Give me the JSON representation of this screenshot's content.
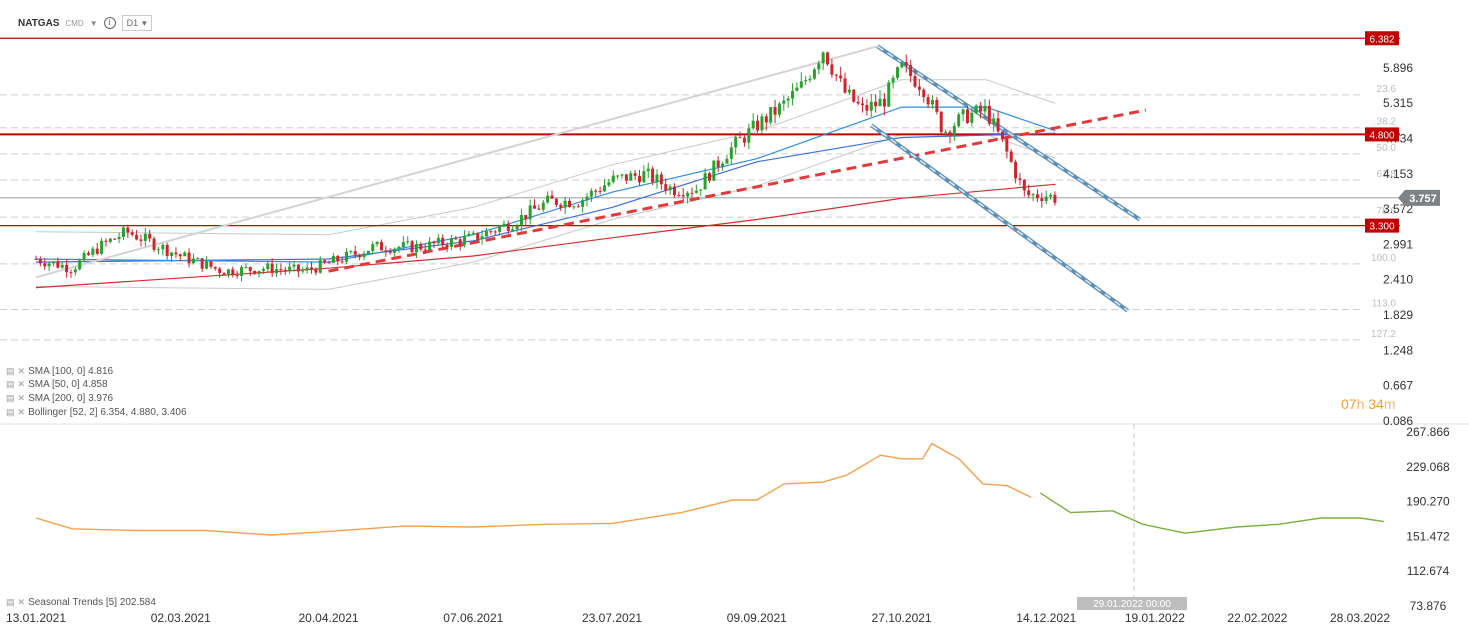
{
  "header": {
    "symbol": "NATGAS",
    "market": "CMD",
    "timeframe": "D1"
  },
  "indicators": [
    {
      "label": "SMA [100,  0] 4.816"
    },
    {
      "label": "SMA [50,  0] 4.858"
    },
    {
      "label": "SMA [200,  0] 3.976"
    },
    {
      "label": "Bollinger  [52, 2] 6.354,  4.880,  3.406"
    }
  ],
  "lower_legend": "Seasonal  Trends [5] 202.584",
  "timer": {
    "hours": "07",
    "h": "h",
    "minutes": "34",
    "m": "m"
  },
  "crosshair_label": "29.01.2022 00:00",
  "colors": {
    "up": "#27a22d",
    "down": "#d0242b",
    "level": "#c00000",
    "sma100": "#3a6fd8",
    "sma50": "#2f8fe0",
    "sma200": "#d12f2f",
    "bollinger": "#c9c9c9",
    "trend": "#e03a3a",
    "channel": "#5c8fb6",
    "seasonal_past": "#f2a14a",
    "seasonal_future": "#7ab03c"
  },
  "chart_data": [
    {
      "type": "candlestick",
      "symbol": "NATGAS",
      "ylim": [
        0.086,
        6.6
      ],
      "y_ticks": [
        "5.896",
        "5.315",
        "4.734",
        "4.153",
        "3.572",
        "2.991",
        "2.410",
        "1.829",
        "1.248",
        "0.667",
        "0.086"
      ],
      "x_ticks": [
        "13.01.2021",
        "02.03.2021",
        "20.04.2021",
        "07.06.2021",
        "23.07.2021",
        "09.09.2021",
        "27.10.2021",
        "14.12.2021",
        "19.01.2022",
        "22.02.2022",
        "28.03.2022"
      ],
      "price_levels": [
        {
          "label": "6.382",
          "value": 6.382
        },
        {
          "label": "4.800",
          "value": 4.8
        },
        {
          "label": "3.300",
          "value": 3.3
        }
      ],
      "last_price": {
        "label": "3.757",
        "value": 3.757
      },
      "fibonacci": [
        {
          "label": "23.6",
          "value": 5.45
        },
        {
          "label": "38.2",
          "value": 4.91
        },
        {
          "label": "50.0",
          "value": 4.48
        },
        {
          "label": "61.8",
          "value": 4.05
        },
        {
          "label": "78.6",
          "value": 3.44
        },
        {
          "label": "100.0",
          "value": 2.67
        },
        {
          "label": "113.0",
          "value": 1.92
        },
        {
          "label": "127.2",
          "value": 1.42
        }
      ],
      "close_path": [
        [
          "13.01.2021",
          2.75
        ],
        [
          "25.01.2021",
          2.6
        ],
        [
          "03.02.2021",
          2.95
        ],
        [
          "12.02.2021",
          3.2
        ],
        [
          "19.02.2021",
          3.05
        ],
        [
          "02.03.2021",
          2.8
        ],
        [
          "16.03.2021",
          2.55
        ],
        [
          "30.03.2021",
          2.6
        ],
        [
          "12.04.2021",
          2.55
        ],
        [
          "20.04.2021",
          2.68
        ],
        [
          "05.05.2021",
          2.95
        ],
        [
          "20.05.2021",
          2.95
        ],
        [
          "07.06.2021",
          3.1
        ],
        [
          "20.06.2021",
          3.35
        ],
        [
          "02.07.2021",
          3.7
        ],
        [
          "12.07.2021",
          3.7
        ],
        [
          "23.07.2021",
          4.05
        ],
        [
          "03.08.2021",
          4.15
        ],
        [
          "12.08.2021",
          3.9
        ],
        [
          "20.08.2021",
          3.9
        ],
        [
          "30.08.2021",
          4.5
        ],
        [
          "09.09.2021",
          4.95
        ],
        [
          "17.09.2021",
          5.25
        ],
        [
          "24.09.2021",
          5.6
        ],
        [
          "01.10.2021",
          6.2
        ],
        [
          "08.10.2021",
          5.5
        ],
        [
          "14.10.2021",
          5.2
        ],
        [
          "21.10.2021",
          5.35
        ],
        [
          "27.10.2021",
          5.9
        ],
        [
          "03.11.2021",
          5.6
        ],
        [
          "10.11.2021",
          4.85
        ],
        [
          "17.11.2021",
          5.1
        ],
        [
          "24.11.2021",
          5.2
        ],
        [
          "30.11.2021",
          4.6
        ],
        [
          "07.12.2021",
          3.8
        ],
        [
          "14.12.2021",
          3.8
        ],
        [
          "17.12.2021",
          3.75
        ]
      ],
      "sma100_path": [
        [
          "13.01.2021",
          2.7
        ],
        [
          "20.04.2021",
          2.75
        ],
        [
          "07.06.2021",
          3.05
        ],
        [
          "23.07.2021",
          3.6
        ],
        [
          "09.09.2021",
          4.35
        ],
        [
          "27.10.2021",
          4.75
        ],
        [
          "17.12.2021",
          4.82
        ]
      ],
      "sma50_path": [
        [
          "13.01.2021",
          2.75
        ],
        [
          "20.04.2021",
          2.7
        ],
        [
          "07.06.2021",
          3.15
        ],
        [
          "23.07.2021",
          3.85
        ],
        [
          "09.09.2021",
          4.4
        ],
        [
          "27.10.2021",
          5.25
        ],
        [
          "24.11.2021",
          5.25
        ],
        [
          "17.12.2021",
          4.86
        ]
      ],
      "sma200_path": [
        [
          "13.01.2021",
          2.28
        ],
        [
          "20.04.2021",
          2.6
        ],
        [
          "07.06.2021",
          2.8
        ],
        [
          "23.07.2021",
          3.1
        ],
        [
          "09.09.2021",
          3.4
        ],
        [
          "27.10.2021",
          3.75
        ],
        [
          "17.12.2021",
          3.98
        ]
      ]
    },
    {
      "type": "line",
      "name": "Seasonal  Trends [5]",
      "ylim": [
        73.876,
        267.866
      ],
      "y_ticks": [
        "267.866",
        "229.068",
        "190.270",
        "151.472",
        "112.674",
        "73.876"
      ],
      "last_value": 202.584,
      "past": [
        [
          "13.01.2021",
          172
        ],
        [
          "25.01.2021",
          160
        ],
        [
          "15.02.2021",
          158
        ],
        [
          "10.03.2021",
          158
        ],
        [
          "01.04.2021",
          153
        ],
        [
          "20.04.2021",
          157
        ],
        [
          "15.05.2021",
          163
        ],
        [
          "07.06.2021",
          162
        ],
        [
          "01.07.2021",
          165
        ],
        [
          "23.07.2021",
          166
        ],
        [
          "15.08.2021",
          178
        ],
        [
          "01.09.2021",
          192
        ],
        [
          "09.09.2021",
          192
        ],
        [
          "18.09.2021",
          210
        ],
        [
          "01.10.2021",
          212
        ],
        [
          "09.10.2021",
          220
        ],
        [
          "20.10.2021",
          242
        ],
        [
          "27.10.2021",
          238
        ],
        [
          "03.11.2021",
          238
        ],
        [
          "06.11.2021",
          255
        ],
        [
          "15.11.2021",
          238
        ],
        [
          "23.11.2021",
          210
        ],
        [
          "01.12.2021",
          208
        ],
        [
          "09.12.2021",
          195
        ]
      ],
      "future": [
        [
          "12.12.2021",
          200
        ],
        [
          "22.12.2021",
          178
        ],
        [
          "05.01.2022",
          180
        ],
        [
          "15.01.2022",
          165
        ],
        [
          "29.01.2022",
          155
        ],
        [
          "15.02.2022",
          162
        ],
        [
          "01.03.2022",
          165
        ],
        [
          "15.03.2022",
          172
        ],
        [
          "28.03.2022",
          172
        ],
        [
          "05.04.2022",
          168
        ]
      ]
    }
  ]
}
